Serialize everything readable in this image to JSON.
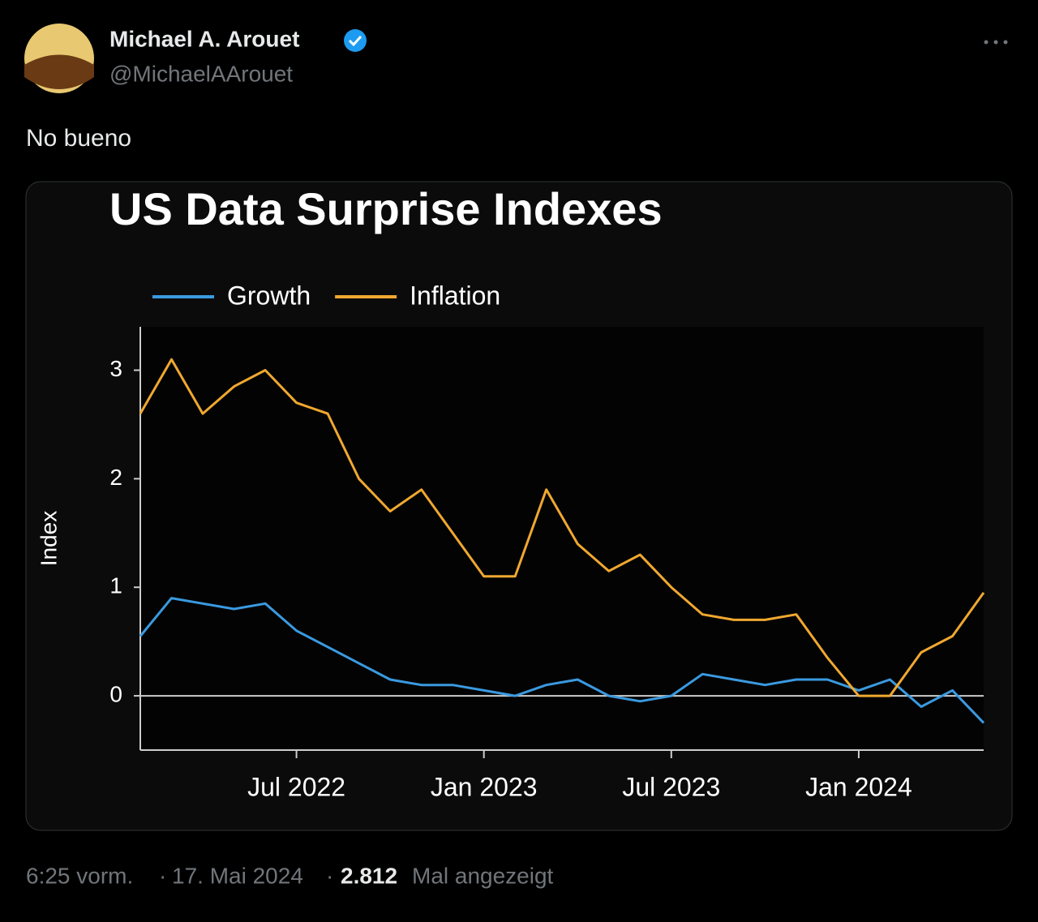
{
  "tweet": {
    "author": {
      "name": "Michael A. Arouet",
      "handle": "@MichaelAArouet"
    },
    "text": "No bueno",
    "footer": {
      "time": "6:25 vorm.",
      "date": "17. Mai 2024",
      "views": "2.812",
      "views_label": "Mal angezeigt"
    }
  },
  "chart_data": {
    "type": "line",
    "title": "US Data Surprise Indexes",
    "y_label": "Index",
    "x": [
      "2022-02",
      "2022-03",
      "2022-04",
      "2022-05",
      "2022-06",
      "2022-07",
      "2022-08",
      "2022-09",
      "2022-10",
      "2022-11",
      "2022-12",
      "2023-01",
      "2023-02",
      "2023-03",
      "2023-04",
      "2023-05",
      "2023-06",
      "2023-07",
      "2023-08",
      "2023-09",
      "2023-10",
      "2023-11",
      "2023-12",
      "2024-01",
      "2024-02",
      "2024-03",
      "2024-04",
      "2024-05"
    ],
    "series": [
      {
        "name": "Growth",
        "color": "#3a9ae0",
        "values": [
          0.55,
          0.9,
          0.85,
          0.8,
          0.85,
          0.6,
          0.45,
          0.3,
          0.15,
          0.1,
          0.1,
          0.05,
          0.0,
          0.1,
          0.15,
          0.0,
          -0.05,
          0.0,
          0.2,
          0.15,
          0.1,
          0.15,
          0.15,
          0.05,
          0.15,
          -0.1,
          0.05,
          -0.25
        ]
      },
      {
        "name": "Inflation",
        "color": "#f0a830",
        "values": [
          2.6,
          3.1,
          2.6,
          2.85,
          3.0,
          2.7,
          2.6,
          2.0,
          1.7,
          1.9,
          1.5,
          1.1,
          1.1,
          1.9,
          1.4,
          1.15,
          1.3,
          1.0,
          0.75,
          0.7,
          0.7,
          0.75,
          0.35,
          0.0,
          0.0,
          0.4,
          0.55,
          0.95
        ]
      }
    ],
    "xlim": [
      "2022-02",
      "2024-05"
    ],
    "xticks": [
      {
        "value": "2022-07",
        "label": "Jul 2022"
      },
      {
        "value": "2023-01",
        "label": "Jan 2023"
      },
      {
        "value": "2023-07",
        "label": "Jul 2023"
      },
      {
        "value": "2024-01",
        "label": "Jan 2024"
      }
    ],
    "ylim": [
      -0.5,
      3.4
    ],
    "yticks": [
      0,
      1,
      2,
      3
    ],
    "zero_line": true,
    "legend": "top-left"
  }
}
